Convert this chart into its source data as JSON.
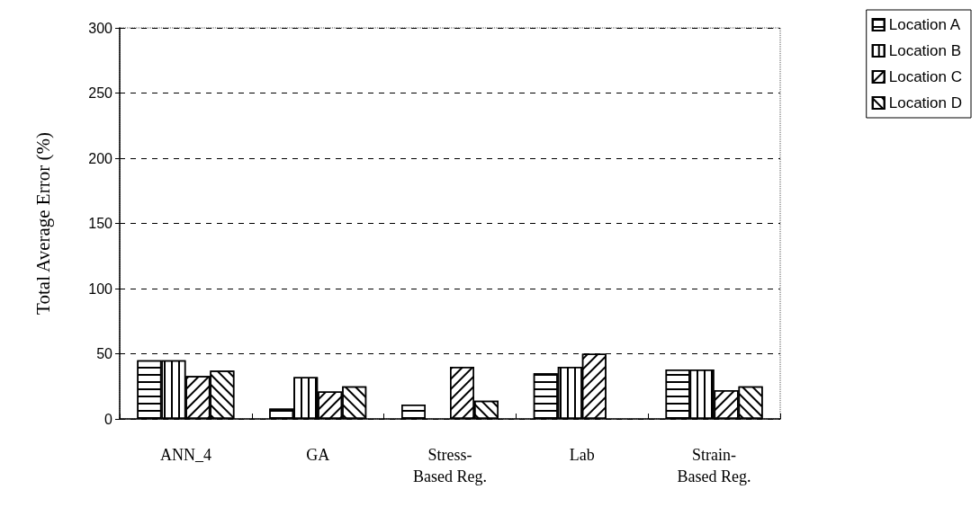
{
  "chart_data": {
    "type": "bar",
    "ylabel": "Total Average Error (%)",
    "categories": [
      "ANN_4",
      "GA",
      "Stress-\nBased Reg.",
      "Lab",
      "Strain-\nBased Reg."
    ],
    "series": [
      {
        "name": "Location A",
        "color": "#ffffff",
        "values": [
          45,
          8,
          11,
          35,
          38
        ]
      },
      {
        "name": "Location B",
        "color": "#ffffff",
        "values": [
          45,
          32,
          null,
          40,
          38
        ]
      },
      {
        "name": "Location C",
        "color": "#ffffff",
        "values": [
          33,
          21,
          40,
          50,
          22
        ]
      },
      {
        "name": "Location D",
        "color": "#ffffff",
        "values": [
          37,
          25,
          14,
          null,
          25
        ]
      }
    ],
    "ylim": [
      0,
      300
    ],
    "yticks": [
      0,
      50,
      100,
      150,
      200,
      250,
      300
    ],
    "grid": "y",
    "legend": "top right"
  }
}
